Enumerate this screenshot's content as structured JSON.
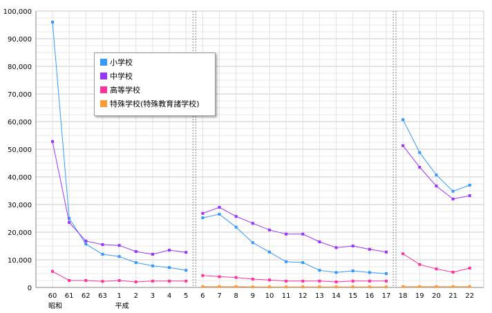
{
  "chart_data": {
    "type": "line",
    "ylim": [
      0,
      100000
    ],
    "yticks": [
      "0",
      "10,000",
      "20,000",
      "30,000",
      "40,000",
      "50,000",
      "60,000",
      "70,000",
      "80,000",
      "90,000",
      "100,000"
    ],
    "grid": true,
    "legend_position": "top-left (inside plot)",
    "categories": [
      "60",
      "61",
      "62",
      "63",
      "1",
      "2",
      "3",
      "4",
      "5",
      "6",
      "7",
      "8",
      "9",
      "10",
      "11",
      "12",
      "13",
      "14",
      "15",
      "16",
      "17",
      "18",
      "19",
      "20",
      "21",
      "22"
    ],
    "era_labels": [
      {
        "text": "昭和",
        "at": "60"
      },
      {
        "text": "平成",
        "at": "1"
      }
    ],
    "segment_breaks": [
      "after 5",
      "after 17"
    ],
    "series": [
      {
        "name": "小学校",
        "color": "#3399ff",
        "values": [
          96000,
          25000,
          15700,
          12000,
          11200,
          9000,
          7800,
          7200,
          6200,
          25200,
          26500,
          21800,
          16200,
          12800,
          9300,
          9000,
          6200,
          5400,
          6000,
          5400,
          5000,
          60700,
          48800,
          40700,
          34800,
          37000
        ]
      },
      {
        "name": "中学校",
        "color": "#9933ff",
        "values": [
          52800,
          23500,
          16800,
          15500,
          15200,
          13000,
          12000,
          13500,
          12700,
          26800,
          29000,
          25700,
          23200,
          20800,
          19300,
          19300,
          16500,
          14400,
          15000,
          13800,
          12800,
          51300,
          43500,
          36700,
          32000,
          33200
        ]
      },
      {
        "name": "高等学校",
        "color": "#ff3399",
        "values": [
          5800,
          2500,
          2500,
          2200,
          2500,
          2000,
          2300,
          2300,
          2300,
          4300,
          3900,
          3600,
          3000,
          2700,
          2300,
          2300,
          2300,
          2000,
          2300,
          2300,
          2300,
          12200,
          8300,
          6700,
          5500,
          7000
        ]
      },
      {
        "name": "特殊学校(特殊教育諸学校)",
        "color": "#ff9933",
        "values": [
          null,
          null,
          null,
          null,
          null,
          null,
          null,
          null,
          null,
          300,
          300,
          300,
          200,
          200,
          200,
          200,
          200,
          200,
          200,
          200,
          200,
          300,
          300,
          300,
          300,
          300
        ]
      }
    ]
  }
}
